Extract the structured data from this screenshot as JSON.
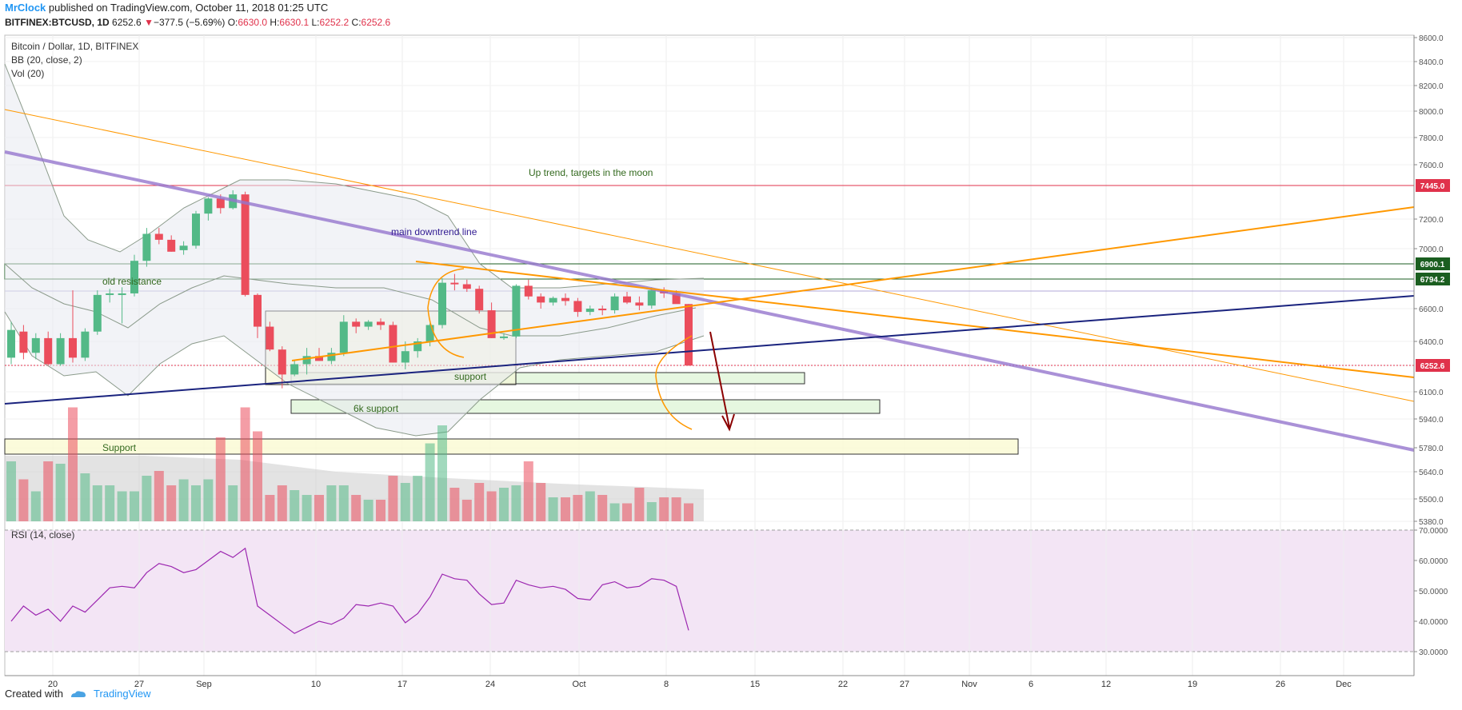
{
  "header": {
    "author": "MrClock",
    "published_text": "published on TradingView.com, October 11, 2018 01:25 UTC",
    "ticker": "BITFINEX:BTCUSD, 1D",
    "last": "6252.6",
    "change_arrow": "▼",
    "change": "−377.5 (−5.69%)",
    "o_label": "O:",
    "o": "6630.0",
    "h_label": "H:",
    "h": "6630.1",
    "l_label": "L:",
    "l": "6252.2",
    "c_label": "C:",
    "c": "6252.6"
  },
  "legend": {
    "symbol": "Bitcoin / Dollar, 1D, BITFINEX",
    "bb": "BB (20, close, 2)",
    "vol": "Vol (20)"
  },
  "rsi_label": "RSI (14, close)",
  "annotations": {
    "uptrend": "Up trend, targets in the moon",
    "downtrend": "main downtrend line",
    "old_resistance": "old resistance",
    "support": "support",
    "six_k_support": "6k support",
    "support_big": "Support"
  },
  "footer": {
    "created_with": "Created with",
    "brand": "TradingView"
  },
  "colors": {
    "up": "#53b987",
    "down": "#eb4d5c",
    "rsi_line": "#9c27b0",
    "rsi_bg": "#f3e5f5",
    "downtrend": "#9575cd",
    "orange": "#ff9800",
    "navy": "#1a237e"
  },
  "chart_data": {
    "type": "candlestick",
    "title": "Bitcoin / Dollar, 1D, BITFINEX",
    "price_axis_ticks": [
      "8600.0",
      "8400.0",
      "8200.0",
      "8000.0",
      "7800.0",
      "7600.0",
      "7445.0",
      "7200.0",
      "7000.0",
      "6900.1",
      "6794.2",
      "6600.0",
      "6400.0",
      "6252.6",
      "6100.0",
      "5940.0",
      "5780.0",
      "5640.0",
      "5500.0",
      "5380.0"
    ],
    "price_labels_highlight": [
      {
        "value": "7445.0",
        "color": "#e0324b"
      },
      {
        "value": "6900.1",
        "color": "#1b5e20"
      },
      {
        "value": "6794.2",
        "color": "#1b5e20"
      },
      {
        "value": "6252.6",
        "color": "#e0324b"
      }
    ],
    "x_ticks": [
      "20",
      "27",
      "Sep",
      "10",
      "17",
      "24",
      "Oct",
      "8",
      "15",
      "22",
      "27",
      "Nov",
      "6",
      "12",
      "19",
      "26",
      "Dec"
    ],
    "rsi_ticks": [
      "70.0000",
      "60.0000",
      "50.0000",
      "40.0000",
      "30.0000"
    ],
    "ylim": [
      5380,
      8600
    ],
    "candles": [
      {
        "o": 6300,
        "h": 6520,
        "l": 6260,
        "c": 6470
      },
      {
        "o": 6460,
        "h": 6500,
        "l": 6290,
        "c": 6330
      },
      {
        "o": 6330,
        "h": 6450,
        "l": 6290,
        "c": 6420
      },
      {
        "o": 6420,
        "h": 6460,
        "l": 6250,
        "c": 6260
      },
      {
        "o": 6260,
        "h": 6450,
        "l": 6250,
        "c": 6420
      },
      {
        "o": 6420,
        "h": 6720,
        "l": 6270,
        "c": 6300
      },
      {
        "o": 6300,
        "h": 6480,
        "l": 6280,
        "c": 6460
      },
      {
        "o": 6460,
        "h": 6720,
        "l": 6440,
        "c": 6690
      },
      {
        "o": 6690,
        "h": 6730,
        "l": 6640,
        "c": 6700
      },
      {
        "o": 6700,
        "h": 6740,
        "l": 6510,
        "c": 6700
      },
      {
        "o": 6700,
        "h": 6960,
        "l": 6680,
        "c": 6920
      },
      {
        "o": 6920,
        "h": 7140,
        "l": 6880,
        "c": 7100
      },
      {
        "o": 7100,
        "h": 7140,
        "l": 7030,
        "c": 7060
      },
      {
        "o": 7060,
        "h": 7090,
        "l": 6980,
        "c": 6980
      },
      {
        "o": 6990,
        "h": 7050,
        "l": 6960,
        "c": 7020
      },
      {
        "o": 7020,
        "h": 7260,
        "l": 7000,
        "c": 7240
      },
      {
        "o": 7240,
        "h": 7360,
        "l": 7190,
        "c": 7350
      },
      {
        "o": 7350,
        "h": 7380,
        "l": 7240,
        "c": 7280
      },
      {
        "o": 7280,
        "h": 7410,
        "l": 7270,
        "c": 7380
      },
      {
        "o": 7380,
        "h": 7400,
        "l": 6680,
        "c": 6690
      },
      {
        "o": 6690,
        "h": 6700,
        "l": 6420,
        "c": 6490
      },
      {
        "o": 6490,
        "h": 6520,
        "l": 6340,
        "c": 6350
      },
      {
        "o": 6350,
        "h": 6370,
        "l": 6120,
        "c": 6200
      },
      {
        "o": 6200,
        "h": 6280,
        "l": 6190,
        "c": 6260
      },
      {
        "o": 6260,
        "h": 6360,
        "l": 6200,
        "c": 6310
      },
      {
        "o": 6310,
        "h": 6360,
        "l": 6280,
        "c": 6280
      },
      {
        "o": 6280,
        "h": 6360,
        "l": 6260,
        "c": 6330
      },
      {
        "o": 6330,
        "h": 6560,
        "l": 6310,
        "c": 6520
      },
      {
        "o": 6520,
        "h": 6540,
        "l": 6450,
        "c": 6490
      },
      {
        "o": 6490,
        "h": 6530,
        "l": 6470,
        "c": 6520
      },
      {
        "o": 6520,
        "h": 6540,
        "l": 6470,
        "c": 6500
      },
      {
        "o": 6500,
        "h": 6520,
        "l": 6270,
        "c": 6270
      },
      {
        "o": 6270,
        "h": 6400,
        "l": 6230,
        "c": 6340
      },
      {
        "o": 6340,
        "h": 6420,
        "l": 6300,
        "c": 6400
      },
      {
        "o": 6400,
        "h": 6510,
        "l": 6370,
        "c": 6500
      },
      {
        "o": 6500,
        "h": 6800,
        "l": 6480,
        "c": 6770
      },
      {
        "o": 6770,
        "h": 6830,
        "l": 6720,
        "c": 6760
      },
      {
        "o": 6760,
        "h": 6790,
        "l": 6710,
        "c": 6730
      },
      {
        "o": 6730,
        "h": 6750,
        "l": 6570,
        "c": 6590
      },
      {
        "o": 6590,
        "h": 6640,
        "l": 6420,
        "c": 6420
      },
      {
        "o": 6420,
        "h": 6450,
        "l": 6410,
        "c": 6430
      },
      {
        "o": 6430,
        "h": 6760,
        "l": 6420,
        "c": 6750
      },
      {
        "o": 6750,
        "h": 6790,
        "l": 6660,
        "c": 6680
      },
      {
        "o": 6680,
        "h": 6700,
        "l": 6600,
        "c": 6640
      },
      {
        "o": 6640,
        "h": 6680,
        "l": 6620,
        "c": 6670
      },
      {
        "o": 6670,
        "h": 6700,
        "l": 6620,
        "c": 6650
      },
      {
        "o": 6650,
        "h": 6670,
        "l": 6550,
        "c": 6580
      },
      {
        "o": 6580,
        "h": 6620,
        "l": 6560,
        "c": 6600
      },
      {
        "o": 6600,
        "h": 6620,
        "l": 6560,
        "c": 6590
      },
      {
        "o": 6590,
        "h": 6700,
        "l": 6570,
        "c": 6680
      },
      {
        "o": 6680,
        "h": 6710,
        "l": 6630,
        "c": 6640
      },
      {
        "o": 6640,
        "h": 6680,
        "l": 6590,
        "c": 6620
      },
      {
        "o": 6620,
        "h": 6740,
        "l": 6600,
        "c": 6720
      },
      {
        "o": 6720,
        "h": 6740,
        "l": 6670,
        "c": 6700
      },
      {
        "o": 6700,
        "h": 6720,
        "l": 6650,
        "c": 6630
      },
      {
        "o": 6630,
        "h": 6630,
        "l": 6250,
        "c": 6252
      }
    ],
    "volume_rel": [
      0.5,
      0.35,
      0.25,
      0.5,
      0.48,
      0.95,
      0.4,
      0.3,
      0.3,
      0.25,
      0.25,
      0.38,
      0.42,
      0.3,
      0.35,
      0.3,
      0.35,
      0.7,
      0.3,
      0.95,
      0.75,
      0.22,
      0.3,
      0.26,
      0.22,
      0.22,
      0.3,
      0.3,
      0.22,
      0.18,
      0.18,
      0.38,
      0.32,
      0.38,
      0.65,
      0.8,
      0.28,
      0.18,
      0.32,
      0.25,
      0.28,
      0.3,
      0.5,
      0.32,
      0.2,
      0.2,
      0.22,
      0.25,
      0.22,
      0.15,
      0.15,
      0.28,
      0.16,
      0.2,
      0.2,
      0.15
    ],
    "rsi": [
      40,
      45,
      42,
      44,
      40,
      45,
      43,
      47,
      51,
      51.5,
      51,
      56,
      59,
      58,
      56,
      57,
      60,
      63,
      61,
      64,
      45,
      42,
      39,
      36,
      38,
      40,
      39,
      41,
      45.5,
      45,
      46,
      45,
      39.5,
      42.5,
      48,
      55.5,
      54,
      53.5,
      49,
      45.5,
      46,
      53.5,
      52,
      51,
      51.5,
      50.5,
      47.5,
      47,
      52,
      53,
      51,
      51.5,
      54,
      53.5,
      51.5,
      37
    ]
  }
}
